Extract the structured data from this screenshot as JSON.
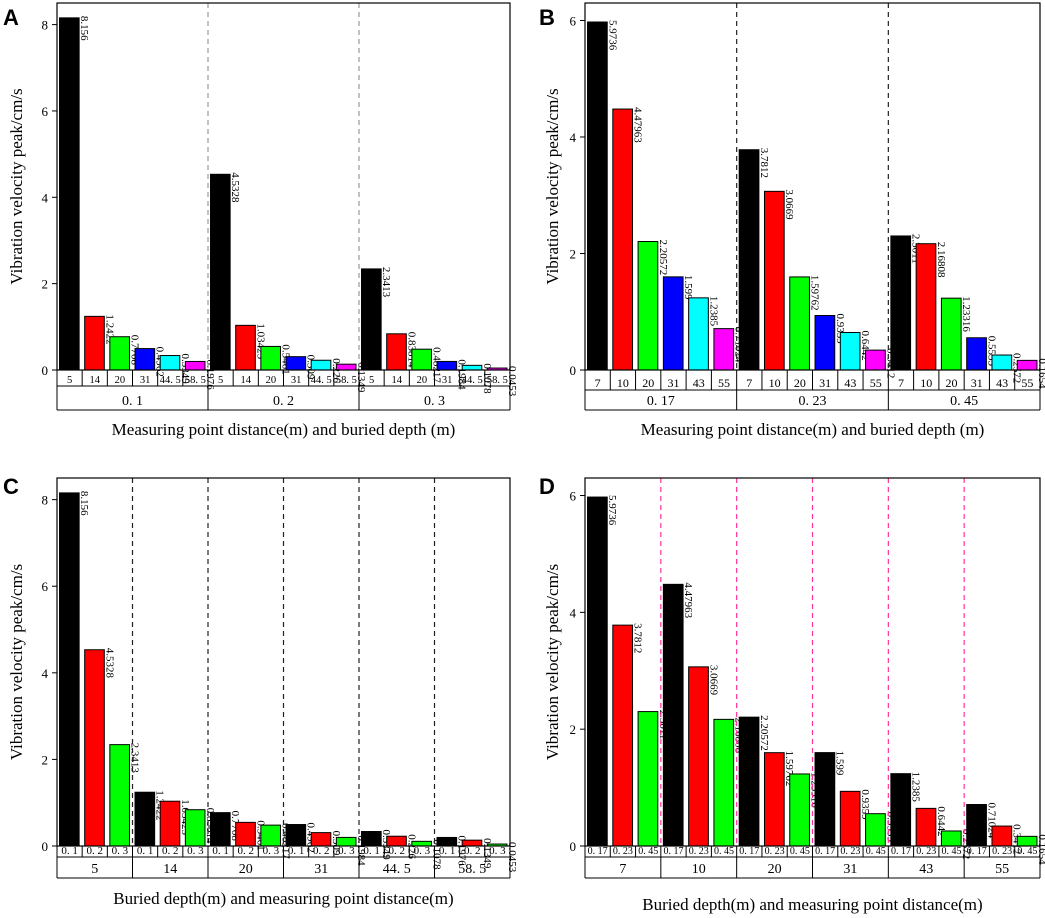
{
  "chart_data": [
    {
      "id": "A",
      "letter": "A",
      "type": "bar",
      "ylabel": "Vibration velocity peak/cm/s",
      "xlabel": "Measuring point distance(m) and buried depth (m)",
      "ylim": [
        0,
        8.5
      ],
      "yticks": [
        0,
        2,
        4,
        6,
        8
      ],
      "separator_color": "#999999",
      "colors": [
        "#000000",
        "#ff0000",
        "#00ff00",
        "#0000ff",
        "#00ffff",
        "#ff00ff"
      ],
      "groups": [
        {
          "label": "0. 1",
          "categories": [
            "5",
            "14",
            "20",
            "31",
            "44. 5",
            "58. 5"
          ],
          "values": [
            8.156,
            1.2422,
            0.7708,
            0.4962,
            0.3349,
            0.1976
          ],
          "value_labels": [
            "8.156",
            "1.2422",
            "0.7708",
            "0.4962",
            "0.3349",
            "0.1976"
          ]
        },
        {
          "label": "0. 2",
          "categories": [
            "5",
            "14",
            "20",
            "31",
            "44. 5",
            "58. 5"
          ],
          "values": [
            4.5328,
            1.03425,
            0.5461,
            0.309,
            0.226,
            0.1349
          ],
          "value_labels": [
            "4.5328",
            "1.03425",
            "0.5461",
            "0.309",
            "0.226",
            "0.1349"
          ]
        },
        {
          "label": "0. 3",
          "categories": [
            "5",
            "14",
            "20",
            "31",
            "44. 5",
            "58. 5"
          ],
          "values": [
            2.3413,
            0.83814,
            0.48217,
            0.1984,
            0.1078,
            0.0453
          ],
          "value_labels": [
            "2.3413",
            "0.83814",
            "0.48217",
            "0.1984",
            "0.1078",
            "0.0453"
          ]
        }
      ]
    },
    {
      "id": "B",
      "letter": "B",
      "type": "bar",
      "ylabel": "Vibration velocity peak/cm/s",
      "xlabel": "Measuring point distance(m) and buried depth (m)",
      "ylim": [
        0,
        6.3
      ],
      "yticks": [
        0,
        2,
        4,
        6
      ],
      "separator_color": "#222222",
      "colors": [
        "#000000",
        "#ff0000",
        "#00ff00",
        "#0000ff",
        "#00ffff",
        "#ff00ff"
      ],
      "groups": [
        {
          "label": "0. 17",
          "categories": [
            "7",
            "10",
            "20",
            "31",
            "43",
            "55"
          ],
          "values": [
            5.9736,
            4.47963,
            2.20572,
            1.599,
            1.2385,
            0.71024
          ],
          "value_labels": [
            "5.9736",
            "4.47963",
            "2.20572",
            "1.599",
            "1.2385",
            "0.71024"
          ]
        },
        {
          "label": "0. 23",
          "categories": [
            "7",
            "10",
            "20",
            "31",
            "43",
            "55"
          ],
          "values": [
            3.7812,
            3.0669,
            1.59762,
            0.9359,
            0.6442,
            0.3412
          ],
          "value_labels": [
            "3.7812",
            "3.0669",
            "1.59762",
            "0.9359",
            "0.6442",
            "0.3412"
          ]
        },
        {
          "label": "0. 45",
          "categories": [
            "7",
            "10",
            "20",
            "31",
            "43",
            "55"
          ],
          "values": [
            2.3011,
            2.16808,
            1.23316,
            0.5533,
            0.2572,
            0.1654
          ],
          "value_labels": [
            "2.3011",
            "2.16808",
            "1.23316",
            "0.5533",
            "0.2572",
            "0.1654"
          ]
        }
      ]
    },
    {
      "id": "C",
      "letter": "C",
      "type": "bar",
      "ylabel": "Vibration velocity peak/cm/s",
      "xlabel": "Buried depth(m) and measuring point distance(m)",
      "ylim": [
        0,
        8.5
      ],
      "yticks": [
        0,
        2,
        4,
        6,
        8
      ],
      "separator_color": "#222222",
      "colors": [
        "#000000",
        "#ff0000",
        "#00ff00"
      ],
      "groups": [
        {
          "label": "5",
          "categories": [
            "0. 1",
            "0. 2",
            "0. 3"
          ],
          "values": [
            8.156,
            4.5328,
            2.3413
          ],
          "value_labels": [
            "8.156",
            "4.5328",
            "2.3413"
          ]
        },
        {
          "label": "14",
          "categories": [
            "0. 1",
            "0. 2",
            "0. 3"
          ],
          "values": [
            1.2422,
            1.03425,
            0.83814
          ],
          "value_labels": [
            "1.2422",
            "1.03425",
            "0.83814"
          ]
        },
        {
          "label": "20",
          "categories": [
            "0. 1",
            "0. 2",
            "0. 3"
          ],
          "values": [
            0.7708,
            0.5461,
            0.48217
          ],
          "value_labels": [
            "0.7708",
            "0.5461",
            "0.48217"
          ]
        },
        {
          "label": "31",
          "categories": [
            "0. 1",
            "0. 2",
            "0. 3"
          ],
          "values": [
            0.4962,
            0.309,
            0.1984
          ],
          "value_labels": [
            "0.4962",
            "0.309",
            "0.1984"
          ]
        },
        {
          "label": "44. 5",
          "categories": [
            "0. 1",
            "0. 2",
            "0. 3"
          ],
          "values": [
            0.3349,
            0.226,
            0.1078
          ],
          "value_labels": [
            "0.3349",
            "0.226",
            "0.1078"
          ]
        },
        {
          "label": "58. 5",
          "categories": [
            "0. 1",
            "0. 2",
            "0. 3"
          ],
          "values": [
            0.1976,
            0.1349,
            0.0453
          ],
          "value_labels": [
            "0.1976",
            "0.1349",
            "0.0453"
          ]
        }
      ]
    },
    {
      "id": "D",
      "letter": "D",
      "type": "bar",
      "ylabel": "Vibration velocity peak/cm/s",
      "xlabel": "Buried depth(m) and measuring point distance(m)",
      "ylim": [
        0,
        6.3
      ],
      "yticks": [
        0,
        2,
        4,
        6
      ],
      "separator_color": "#ff3399",
      "colors": [
        "#000000",
        "#ff0000",
        "#00ff00"
      ],
      "groups": [
        {
          "label": "7",
          "categories": [
            "0. 17",
            "0. 23",
            "0. 45"
          ],
          "values": [
            5.9736,
            3.7812,
            2.3011
          ],
          "value_labels": [
            "5.9736",
            "3.7812",
            "2.3011"
          ]
        },
        {
          "label": "10",
          "categories": [
            "0. 17",
            "0. 23",
            "0. 45"
          ],
          "values": [
            4.47963,
            3.0669,
            2.16808
          ],
          "value_labels": [
            "4.47963",
            "3.0669",
            "2.16808"
          ]
        },
        {
          "label": "20",
          "categories": [
            "0. 17",
            "0. 23",
            "0. 45"
          ],
          "values": [
            2.20572,
            1.59762,
            1.23316
          ],
          "value_labels": [
            "2.20572",
            "1.59762",
            "1.23316"
          ]
        },
        {
          "label": "31",
          "categories": [
            "0. 17",
            "0. 23",
            "0. 45"
          ],
          "values": [
            1.599,
            0.9359,
            0.5533
          ],
          "value_labels": [
            "1.599",
            "0.9359",
            "0.5533"
          ]
        },
        {
          "label": "43",
          "categories": [
            "0. 17",
            "0. 23",
            "0. 45"
          ],
          "values": [
            1.2385,
            0.6442,
            0.2572
          ],
          "value_labels": [
            "1.2385",
            "0.6442",
            "0.2572"
          ]
        },
        {
          "label": "55",
          "categories": [
            "0. 17",
            "0. 23",
            "0. 45"
          ],
          "values": [
            0.71024,
            0.3412,
            0.1654
          ],
          "value_labels": [
            "0.71024",
            "0.3412",
            "0.1654"
          ]
        }
      ]
    }
  ]
}
